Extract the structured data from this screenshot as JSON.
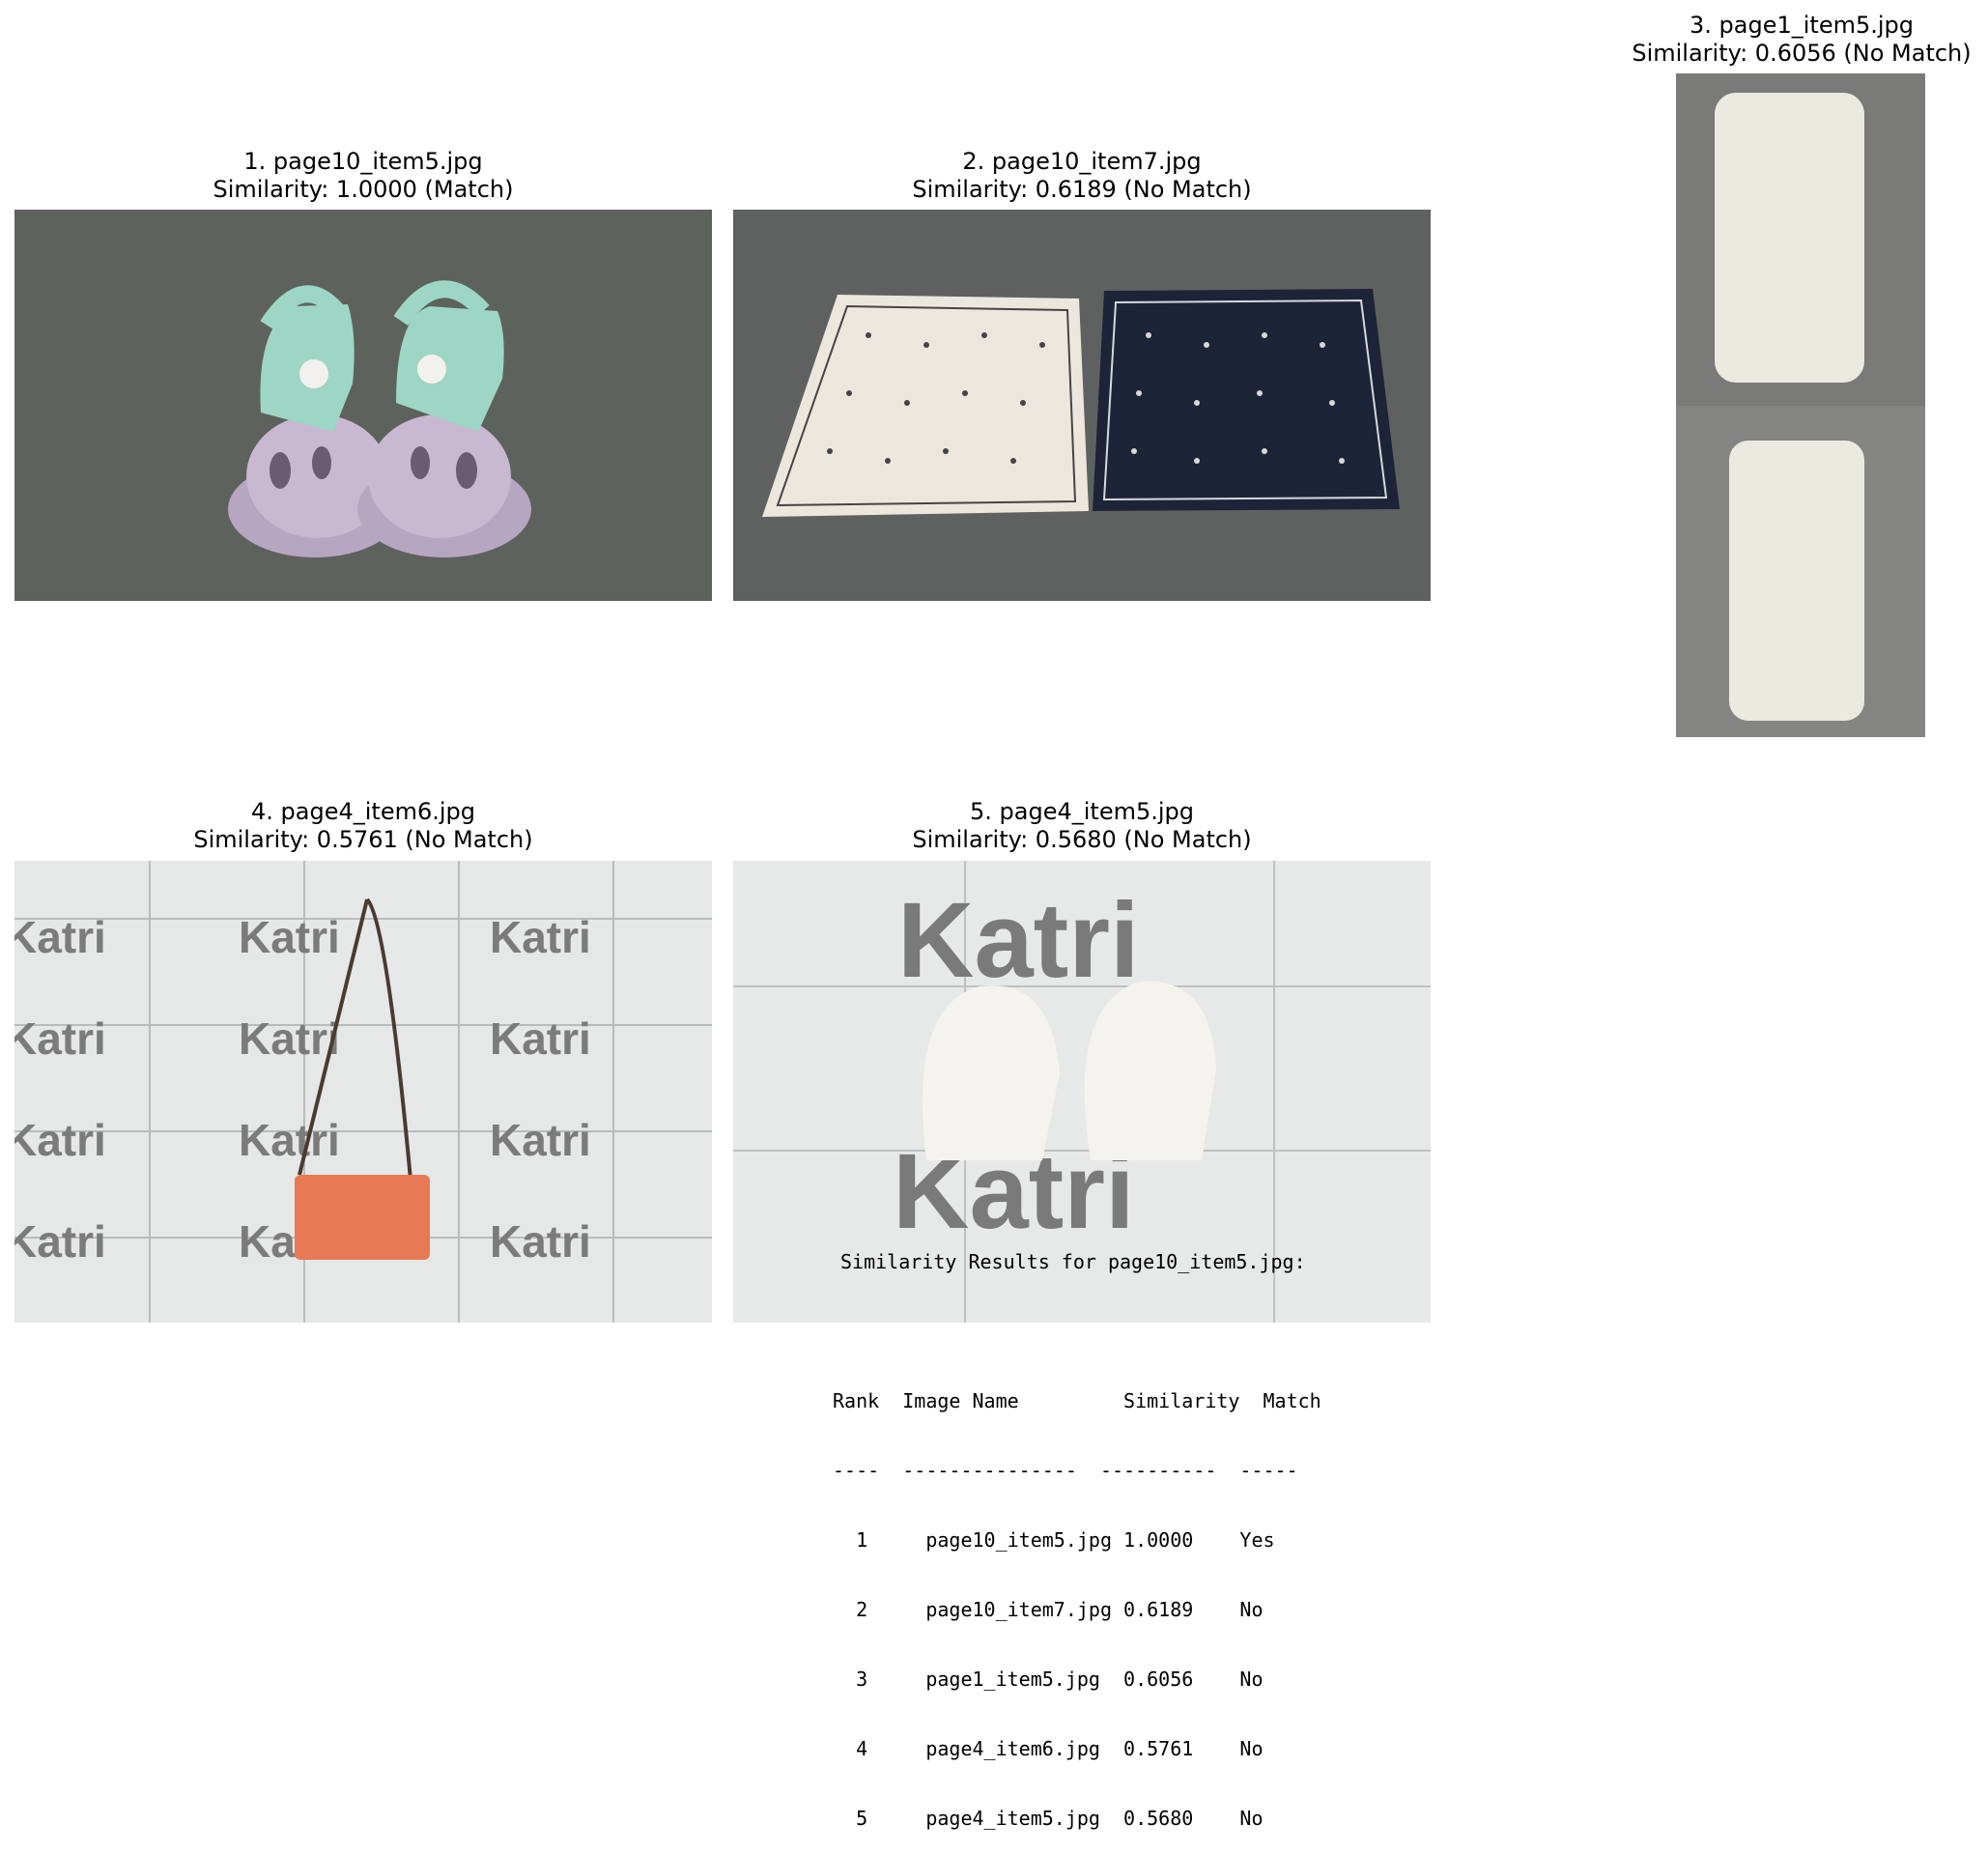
{
  "items": [
    {
      "title": "1. page10_item5.jpg",
      "similarity": "Similarity: 1.0000 (Match)",
      "subject": "shoes-icon"
    },
    {
      "title": "2. page10_item7.jpg",
      "similarity": "Similarity: 0.6189 (No Match)",
      "subject": "scarves-icon"
    },
    {
      "title": "3. page1_item5.jpg",
      "similarity": "Similarity: 0.6056 (No Match)",
      "subject": "towels-icon"
    },
    {
      "title": "4. page4_item6.jpg",
      "similarity": "Similarity: 0.5761 (No Match)",
      "subject": "bag-icon"
    },
    {
      "title": "5. page4_item5.jpg",
      "similarity": "Similarity: 0.5680 (No Match)",
      "subject": "mittens-icon"
    }
  ],
  "watermark": "Katri",
  "results": {
    "heading": "Similarity Results for page10_item5.jpg:",
    "header_line": "Rank  Image Name         Similarity  Match",
    "divider_line": "----  ---------------  ----------  -----",
    "rows": [
      "  1     page10_item5.jpg 1.0000    Yes",
      "  2     page10_item7.jpg 0.6189    No",
      "  3     page1_item5.jpg  0.6056    No",
      "  4     page4_item6.jpg  0.5761    No",
      "  5     page4_item5.jpg  0.5680    No"
    ]
  }
}
